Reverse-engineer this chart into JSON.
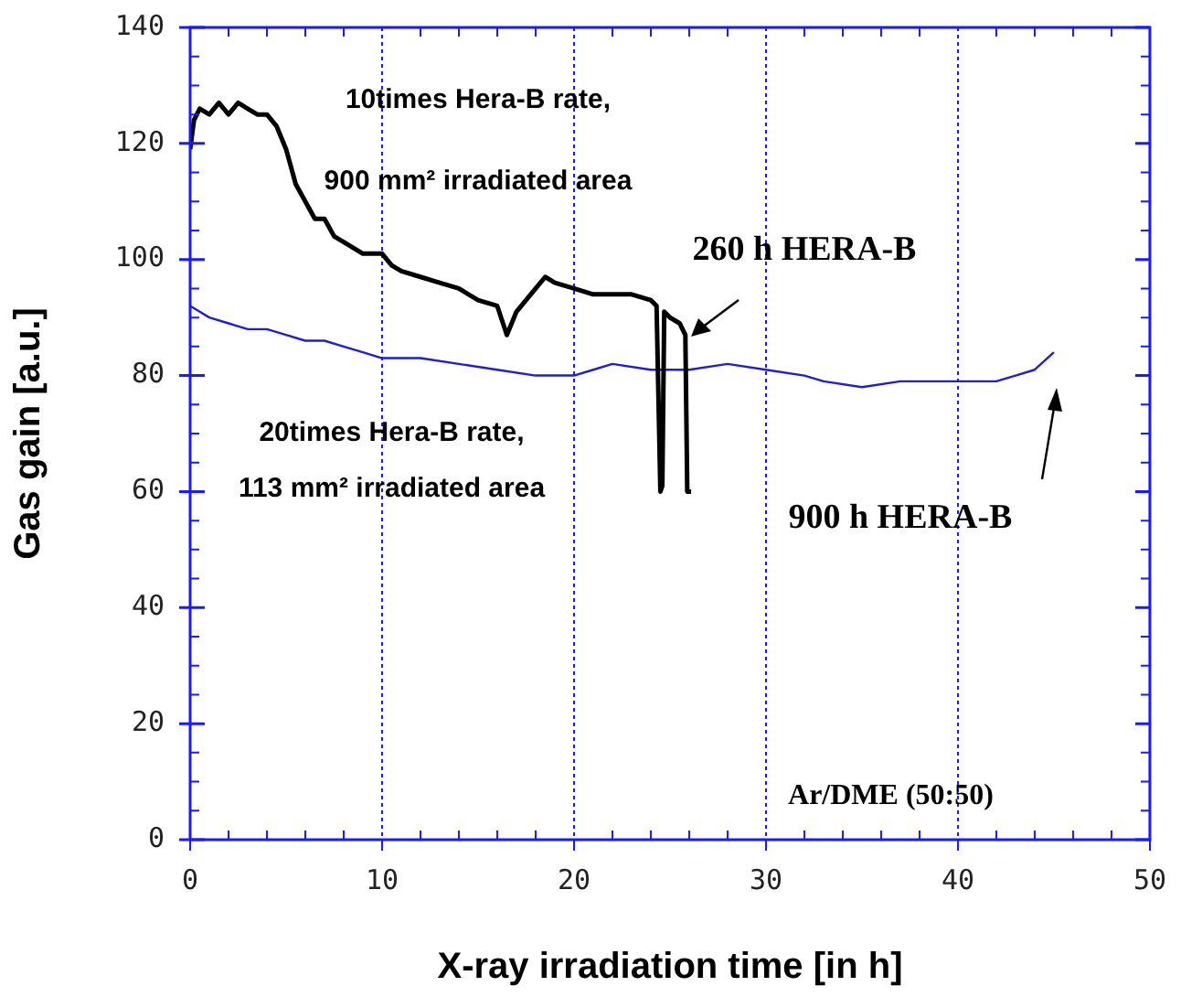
{
  "chart_data": {
    "type": "line",
    "xlabel": "X-ray irradiation time [in h]",
    "ylabel": "Gas gain [a.u.]",
    "xlim": [
      0,
      50
    ],
    "xticks": [
      0,
      10,
      20,
      30,
      40,
      50
    ],
    "ylim": [
      0,
      140
    ],
    "yticks": [
      0,
      20,
      40,
      60,
      80,
      100,
      120,
      140
    ],
    "grid": "x",
    "legend": false,
    "marker": "none",
    "line_style": "solid",
    "series": [
      {
        "color": "#000000",
        "x": [
          0,
          0.2,
          0.5,
          1,
          1.5,
          2,
          2.5,
          3,
          3.5,
          4,
          4.5,
          5,
          5.5,
          6,
          6.5,
          7,
          7.5,
          8,
          9,
          10,
          10.5,
          11,
          12,
          13,
          14,
          15,
          16,
          16.5,
          17,
          18,
          18.5,
          19,
          20,
          21,
          22,
          23,
          24,
          24.3,
          24.5,
          24.6,
          24.7,
          25,
          25.5,
          25.8,
          25.9,
          26.1
        ],
        "values": [
          119,
          124,
          126,
          125,
          127,
          125,
          127,
          126,
          125,
          125,
          123,
          119,
          113,
          110,
          107,
          107,
          104,
          103,
          101,
          101,
          99,
          98,
          97,
          96,
          95,
          93,
          92,
          87,
          91,
          95,
          97,
          96,
          95,
          94,
          94,
          94,
          93,
          92,
          60,
          61,
          91,
          90,
          89,
          87,
          60,
          60
        ]
      },
      {
        "color": "#1f1fd0",
        "x": [
          0,
          1,
          2,
          3,
          4,
          5,
          6,
          7,
          8,
          9,
          10,
          12,
          14,
          16,
          18,
          19,
          20,
          21,
          22,
          24,
          26,
          28,
          30,
          32,
          33,
          35,
          37,
          39,
          40,
          42,
          43,
          44,
          45
        ],
        "values": [
          92,
          90,
          89,
          88,
          88,
          87,
          86,
          86,
          85,
          84,
          83,
          83,
          82,
          81,
          80,
          80,
          80,
          81,
          82,
          81,
          81,
          82,
          81,
          80,
          79,
          78,
          79,
          79,
          79,
          79,
          80,
          81,
          84
        ]
      }
    ],
    "annotations": [
      "10times Hera-B rate,",
      "900 mm² irradiated area",
      "260 h HERA-B",
      "20times Hera-B rate,",
      "113 mm² irradiated area",
      "900 h HERA-B",
      "Ar/DME (50:50)"
    ]
  }
}
